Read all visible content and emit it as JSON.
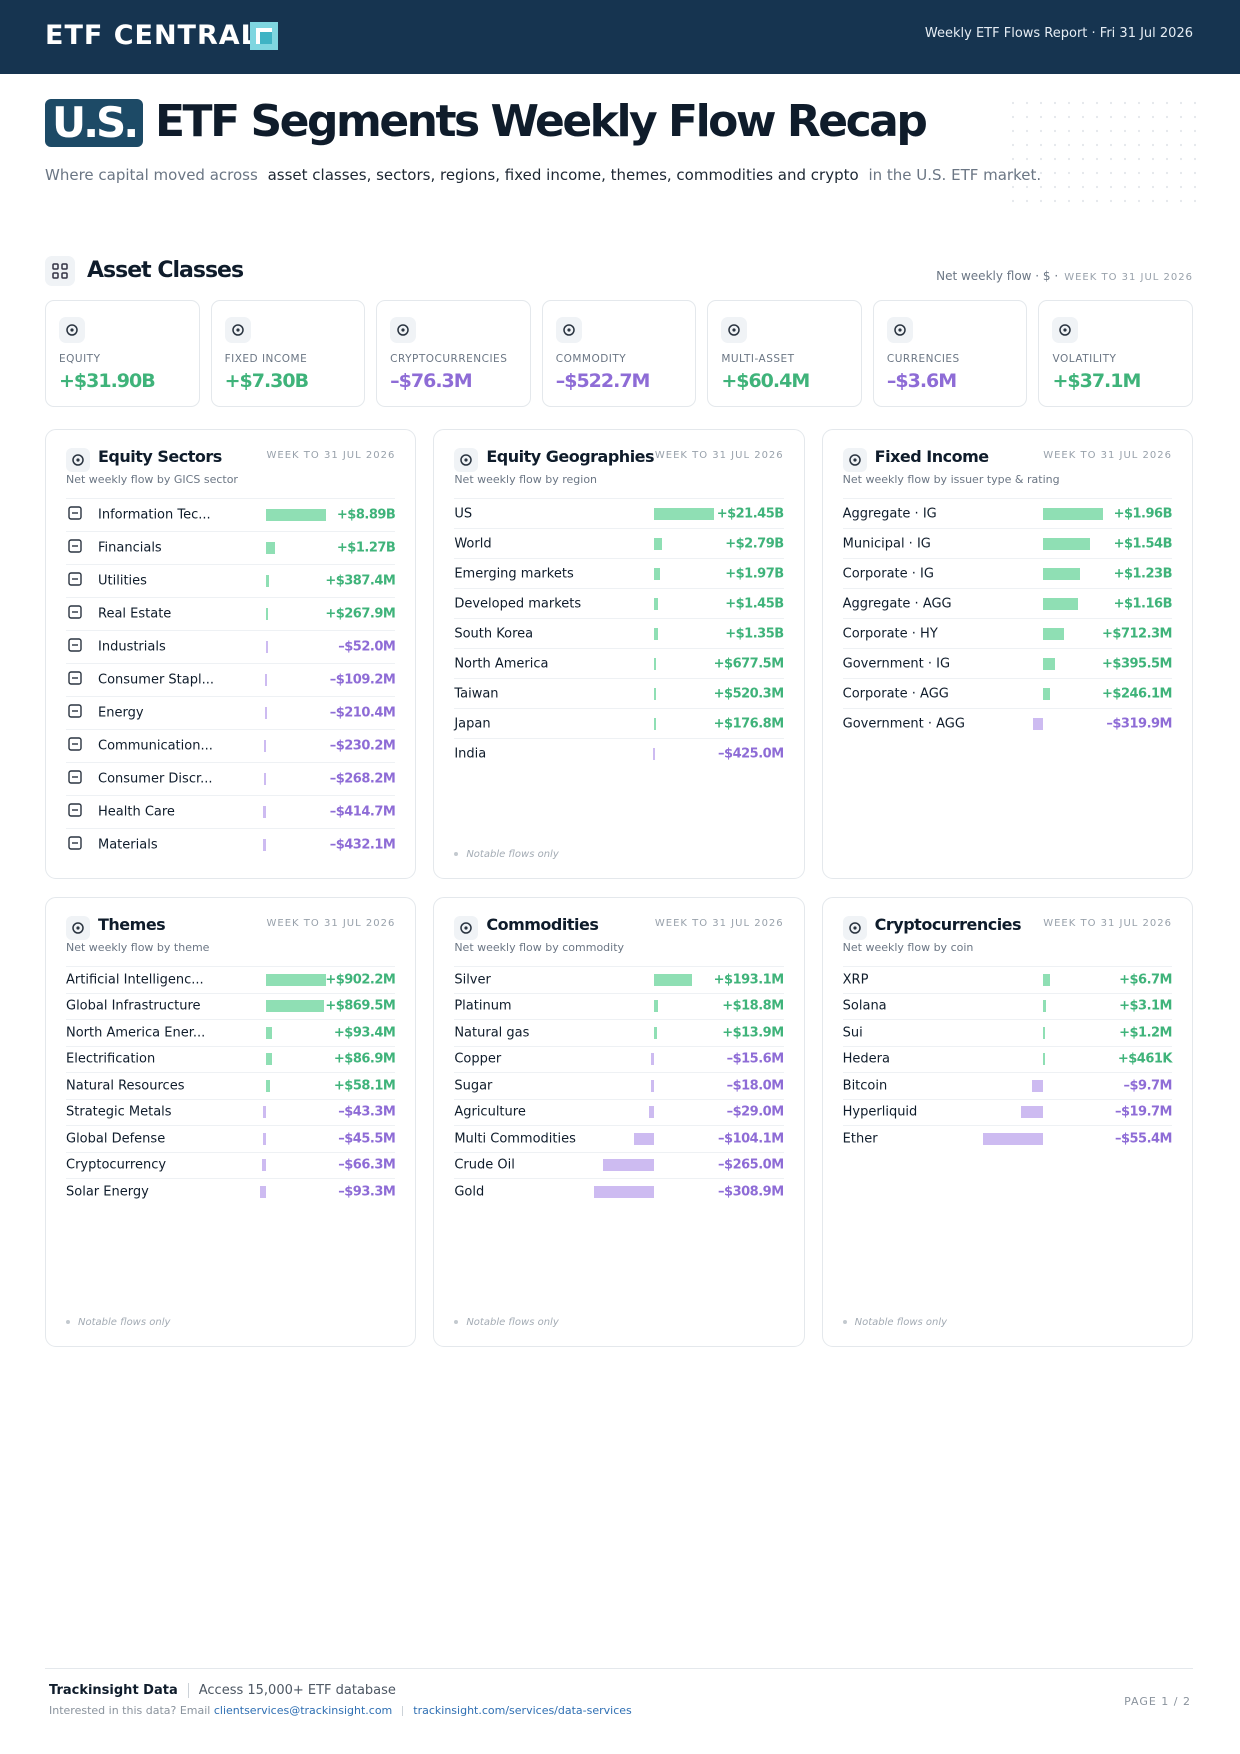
{
  "header": {
    "brand": "ETF CENTRAL",
    "report": "Weekly ETF Flows Report · Fri 31 Jul 2026"
  },
  "hero": {
    "badge": "U.S.",
    "title": "ETF Segments Weekly Flow Recap",
    "subtitle": [
      "Where capital moved across",
      "asset classes, sectors, regions, fixed income, themes, commodities and crypto",
      "in the U.S. ETF market."
    ]
  },
  "asset_classes": {
    "title": "Asset Classes",
    "note": "Net weekly flow · $ ·",
    "week": "WEEK TO 31 JUL 2026",
    "cards": [
      {
        "label": "EQUITY",
        "value": "+$31.90B"
      },
      {
        "label": "FIXED INCOME",
        "value": "+$7.30B"
      },
      {
        "label": "CRYPTOCURRENCIES",
        "value": "–$76.3M"
      },
      {
        "label": "COMMODITY",
        "value": "–$522.7M"
      },
      {
        "label": "MULTI-ASSET",
        "value": "+$60.4M"
      },
      {
        "label": "CURRENCIES",
        "value": "–$3.6M"
      },
      {
        "label": "VOLATILITY",
        "value": "+$37.1M"
      }
    ]
  },
  "panels": [
    {
      "title": "Equity Sectors",
      "week": "WEEK TO 31 JUL 2026",
      "subtitle": "Net weekly flow by GICS sector",
      "rows": [
        {
          "label": "Information Tec...",
          "value": 8890,
          "value_label": "+$8.89B"
        },
        {
          "label": "Financials",
          "value": 1270,
          "value_label": "+$1.27B"
        },
        {
          "label": "Utilities",
          "value": 387.4,
          "value_label": "+$387.4M"
        },
        {
          "label": "Real Estate",
          "value": 267.9,
          "value_label": "+$267.9M"
        },
        {
          "label": "Industrials",
          "value": -52.0,
          "value_label": "–$52.0M"
        },
        {
          "label": "Consumer Stapl...",
          "value": -109.2,
          "value_label": "–$109.2M"
        },
        {
          "label": "Energy",
          "value": -210.4,
          "value_label": "–$210.4M"
        },
        {
          "label": "Communication...",
          "value": -230.2,
          "value_label": "–$230.2M"
        },
        {
          "label": "Consumer Discr...",
          "value": -268.2,
          "value_label": "–$268.2M"
        },
        {
          "label": "Health Care",
          "value": -414.7,
          "value_label": "–$414.7M"
        },
        {
          "label": "Materials",
          "value": -432.1,
          "value_label": "–$432.1M"
        }
      ]
    },
    {
      "title": "Equity Geographies",
      "week": "WEEK TO 31 JUL 2026",
      "subtitle": "Net weekly flow by region",
      "footnote": "Notable flows only",
      "rows": [
        {
          "label": "US",
          "value": 21450,
          "value_label": "+$21.45B"
        },
        {
          "label": "World",
          "value": 2790,
          "value_label": "+$2.79B"
        },
        {
          "label": "Emerging markets",
          "value": 1970,
          "value_label": "+$1.97B"
        },
        {
          "label": "Developed markets",
          "value": 1450,
          "value_label": "+$1.45B"
        },
        {
          "label": "South Korea",
          "value": 1350,
          "value_label": "+$1.35B"
        },
        {
          "label": "North America",
          "value": 677.5,
          "value_label": "+$677.5M"
        },
        {
          "label": "Taiwan",
          "value": 520.3,
          "value_label": "+$520.3M"
        },
        {
          "label": "Japan",
          "value": 176.8,
          "value_label": "+$176.8M"
        },
        {
          "label": "India",
          "value": -425.0,
          "value_label": "–$425.0M"
        }
      ]
    },
    {
      "title": "Fixed Income",
      "week": "WEEK TO 31 JUL 2026",
      "subtitle": "Net weekly flow by issuer type & rating",
      "rows": [
        {
          "label": "Aggregate · IG",
          "value": 1960,
          "value_label": "+$1.96B"
        },
        {
          "label": "Municipal · IG",
          "value": 1540,
          "value_label": "+$1.54B"
        },
        {
          "label": "Corporate · IG",
          "value": 1230,
          "value_label": "+$1.23B"
        },
        {
          "label": "Aggregate · AGG",
          "value": 1160,
          "value_label": "+$1.16B"
        },
        {
          "label": "Corporate · HY",
          "value": 712.3,
          "value_label": "+$712.3M"
        },
        {
          "label": "Government · IG",
          "value": 395.5,
          "value_label": "+$395.5M"
        },
        {
          "label": "Corporate · AGG",
          "value": 246.1,
          "value_label": "+$246.1M"
        },
        {
          "label": "Government · AGG",
          "value": -319.9,
          "value_label": "–$319.9M"
        }
      ]
    },
    {
      "title": "Themes",
      "week": "WEEK TO 31 JUL 2026",
      "subtitle": "Net weekly flow by theme",
      "footnote": "Notable flows only",
      "rows": [
        {
          "label": "Artificial Intelligenc...",
          "value": 902.2,
          "value_label": "+$902.2M"
        },
        {
          "label": "Global Infrastructure",
          "value": 869.5,
          "value_label": "+$869.5M"
        },
        {
          "label": "North America Ener...",
          "value": 93.4,
          "value_label": "+$93.4M"
        },
        {
          "label": "Electrification",
          "value": 86.9,
          "value_label": "+$86.9M"
        },
        {
          "label": "Natural Resources",
          "value": 58.1,
          "value_label": "+$58.1M"
        },
        {
          "label": "Strategic Metals",
          "value": -43.3,
          "value_label": "–$43.3M"
        },
        {
          "label": "Global Defense",
          "value": -45.5,
          "value_label": "–$45.5M"
        },
        {
          "label": "Cryptocurrency",
          "value": -66.3,
          "value_label": "–$66.3M"
        },
        {
          "label": "Solar Energy",
          "value": -93.3,
          "value_label": "–$93.3M"
        }
      ]
    },
    {
      "title": "Commodities",
      "week": "WEEK TO 31 JUL 2026",
      "subtitle": "Net weekly flow by commodity",
      "footnote": "Notable flows only",
      "rows": [
        {
          "label": "Silver",
          "value": 193.1,
          "value_label": "+$193.1M"
        },
        {
          "label": "Platinum",
          "value": 18.8,
          "value_label": "+$18.8M"
        },
        {
          "label": "Natural gas",
          "value": 13.9,
          "value_label": "+$13.9M"
        },
        {
          "label": "Copper",
          "value": -15.6,
          "value_label": "–$15.6M"
        },
        {
          "label": "Sugar",
          "value": -18.0,
          "value_label": "–$18.0M"
        },
        {
          "label": "Agriculture",
          "value": -29.0,
          "value_label": "–$29.0M"
        },
        {
          "label": "Multi Commodities",
          "value": -104.1,
          "value_label": "–$104.1M"
        },
        {
          "label": "Crude Oil",
          "value": -265.0,
          "value_label": "–$265.0M"
        },
        {
          "label": "Gold",
          "value": -308.9,
          "value_label": "–$308.9M"
        }
      ]
    },
    {
      "title": "Cryptocurrencies",
      "week": "WEEK TO 31 JUL 2026",
      "subtitle": "Net weekly flow by coin",
      "footnote": "Notable flows only",
      "rows": [
        {
          "label": "XRP",
          "value": 6.7,
          "value_label": "+$6.7M"
        },
        {
          "label": "Solana",
          "value": 3.1,
          "value_label": "+$3.1M"
        },
        {
          "label": "Sui",
          "value": 1.2,
          "value_label": "+$1.2M"
        },
        {
          "label": "Hedera",
          "value": 0.461,
          "value_label": "+$461K"
        },
        {
          "label": "Bitcoin",
          "value": -9.7,
          "value_label": "–$9.7M"
        },
        {
          "label": "Hyperliquid",
          "value": -19.7,
          "value_label": "–$19.7M"
        },
        {
          "label": "Ether",
          "value": -55.4,
          "value_label": "–$55.4M"
        }
      ]
    }
  ],
  "footer": {
    "brand": "Trackinsight Data",
    "tagline": "Access 15,000+ ETF database",
    "prompt": "Interested in this data? Email",
    "email": "clientservices@trackinsight.com",
    "link": "trackinsight.com/services/data-services",
    "page": "PAGE 1 / 2"
  }
}
